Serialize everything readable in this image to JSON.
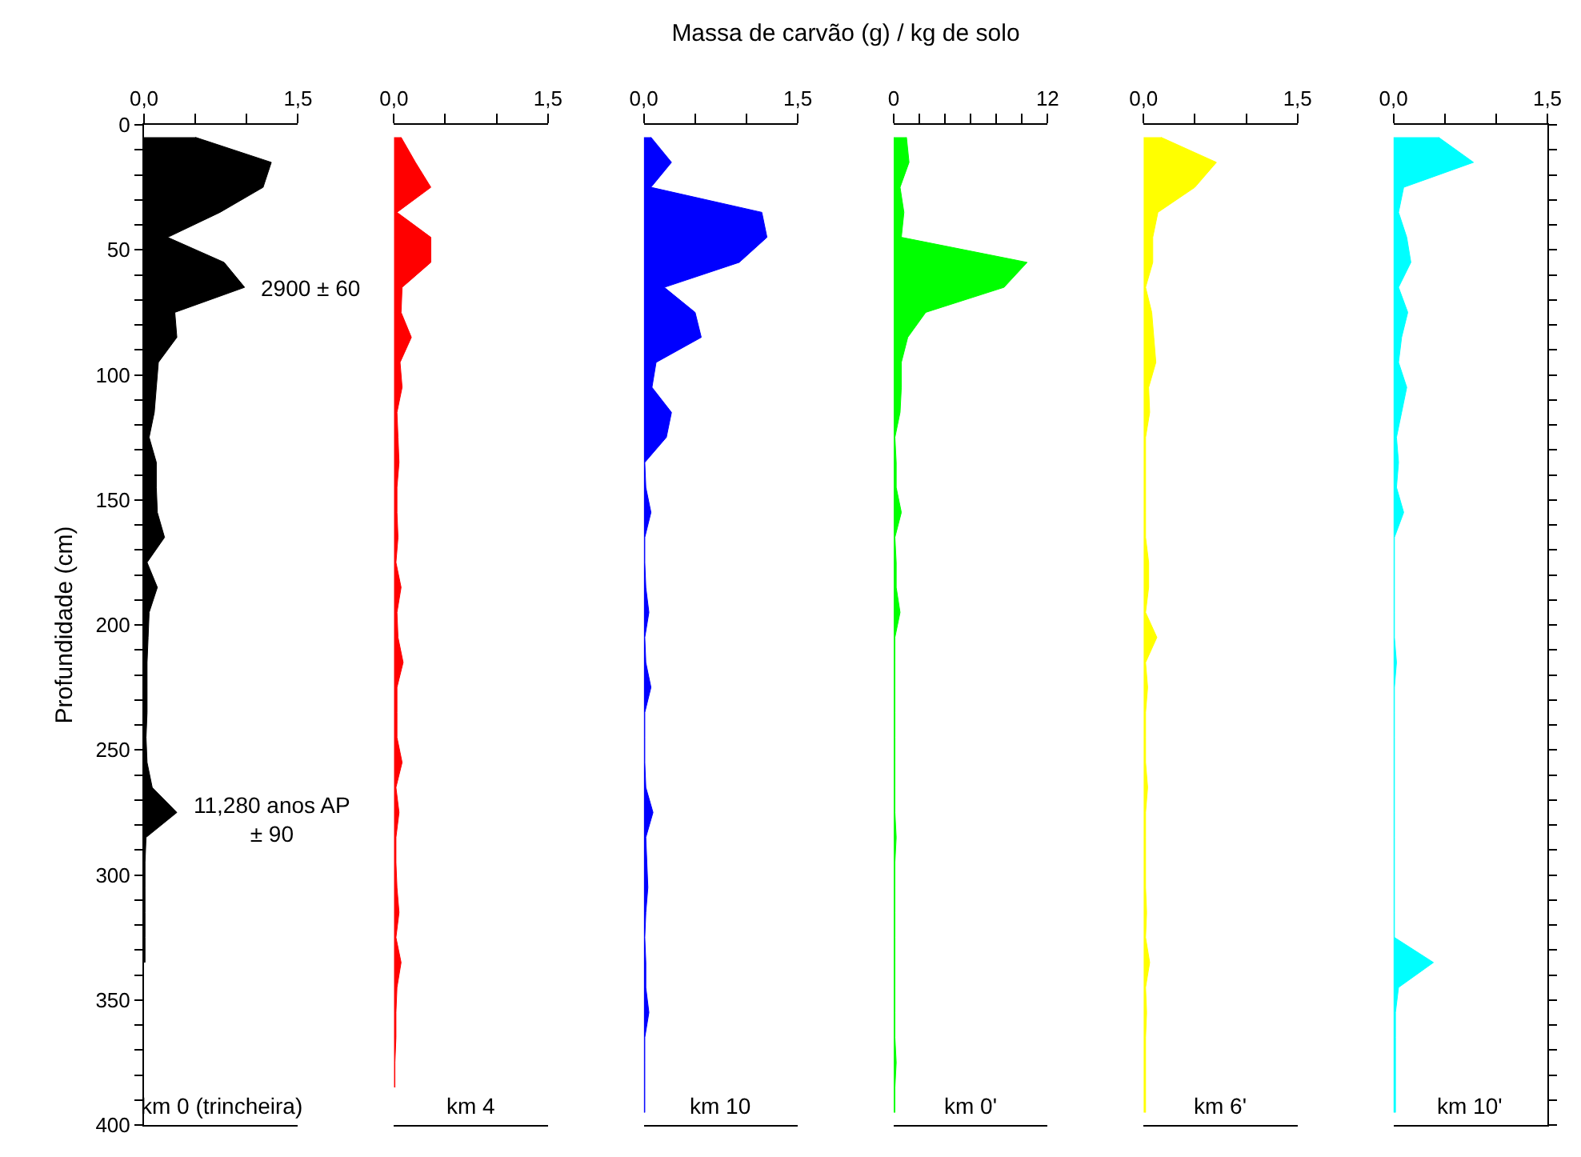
{
  "chart_data": [
    {
      "type": "area",
      "orientation": "horizontal",
      "ylabel": "Profundidade (cm)",
      "xlim": [
        0,
        1.5
      ],
      "xticks": [
        {
          "value": 0,
          "label": "0,0"
        },
        {
          "value": 0.5,
          "label": null
        },
        {
          "value": 1.0,
          "label": null
        },
        {
          "value": 1.5,
          "label": "1,5"
        }
      ],
      "ylim": [
        400,
        0
      ],
      "yticks": [
        0,
        {
          "value": 10,
          "label": null
        },
        {
          "value": 20,
          "label": null
        },
        {
          "value": 30,
          "label": null
        },
        {
          "value": 40,
          "label": null
        },
        50,
        {
          "value": 60,
          "label": null
        },
        {
          "value": 70,
          "label": null
        },
        {
          "value": 80,
          "label": null
        },
        {
          "value": 90,
          "label": null
        },
        100,
        {
          "value": 110,
          "label": null
        },
        {
          "value": 120,
          "label": null
        },
        {
          "value": 130,
          "label": null
        },
        {
          "value": 140,
          "label": null
        },
        150,
        {
          "value": 160,
          "label": null
        },
        {
          "value": 170,
          "label": null
        },
        {
          "value": 180,
          "label": null
        },
        {
          "value": 190,
          "label": null
        },
        200,
        {
          "value": 210,
          "label": null
        },
        {
          "value": 220,
          "label": null
        },
        {
          "value": 230,
          "label": null
        },
        {
          "value": 240,
          "label": null
        },
        250,
        {
          "value": 260,
          "label": null
        },
        {
          "value": 270,
          "label": null
        },
        {
          "value": 280,
          "label": null
        },
        {
          "value": 290,
          "label": null
        },
        300,
        {
          "value": 310,
          "label": null
        },
        {
          "value": 320,
          "label": null
        },
        {
          "value": 330,
          "label": null
        },
        {
          "value": 340,
          "label": null
        },
        350,
        {
          "value": 360,
          "label": null
        },
        {
          "value": 370,
          "label": null
        },
        {
          "value": 380,
          "label": null
        },
        {
          "value": 390,
          "label": null
        },
        400
      ],
      "annotations": [
        {
          "text": "2900 ± 60",
          "x": 0.98,
          "y": 65
        },
        {
          "text": "11,280 anos AP\n± 90",
          "x": 0.32,
          "y": 278
        }
      ],
      "x": [
        5,
        15,
        25,
        35,
        45,
        55,
        65,
        75,
        85,
        95,
        105,
        115,
        125,
        135,
        145,
        155,
        165,
        175,
        185,
        195,
        205,
        215,
        225,
        235,
        245,
        255,
        265,
        275,
        285,
        295,
        305,
        315,
        325,
        335
      ],
      "series": [
        {
          "name": "km 0 (trincheira)",
          "color": "#000000",
          "values": [
            0.5,
            1.24,
            1.16,
            0.74,
            0.23,
            0.78,
            0.98,
            0.3,
            0.32,
            0.14,
            0.12,
            0.1,
            0.05,
            0.12,
            0.12,
            0.13,
            0.2,
            0.03,
            0.13,
            0.05,
            0.04,
            0.03,
            0.03,
            0.03,
            0.02,
            0.03,
            0.08,
            0.32,
            0.02,
            0.01,
            0.01,
            0.01,
            0.01,
            0.01
          ]
        }
      ]
    },
    {
      "type": "area",
      "orientation": "horizontal",
      "tick_labels": "x",
      "xlim": [
        0,
        1.5
      ],
      "xticks": [
        {
          "value": 0,
          "label": "0,0"
        },
        {
          "value": 0.5,
          "label": null
        },
        {
          "value": 1.0,
          "label": null
        },
        {
          "value": 1.5,
          "label": "1,5"
        }
      ],
      "ylim": [
        400,
        0
      ],
      "x": [
        5,
        15,
        25,
        35,
        45,
        55,
        65,
        75,
        85,
        95,
        105,
        115,
        125,
        135,
        145,
        155,
        165,
        175,
        185,
        195,
        205,
        215,
        225,
        235,
        245,
        255,
        265,
        275,
        285,
        295,
        305,
        315,
        325,
        335,
        345,
        355,
        365,
        375,
        385
      ],
      "series": [
        {
          "name": "km 4",
          "color": "#ff0000",
          "values": [
            0.07,
            0.21,
            0.36,
            0.03,
            0.36,
            0.36,
            0.08,
            0.07,
            0.17,
            0.06,
            0.08,
            0.03,
            0.04,
            0.05,
            0.03,
            0.03,
            0.04,
            0.02,
            0.07,
            0.03,
            0.04,
            0.09,
            0.03,
            0.03,
            0.03,
            0.08,
            0.02,
            0.05,
            0.02,
            0.02,
            0.03,
            0.05,
            0.02,
            0.07,
            0.03,
            0.02,
            0.02,
            0.01,
            0.01
          ]
        }
      ]
    },
    {
      "type": "area",
      "orientation": "horizontal",
      "title": "Massa de carvão (g) / kg de solo",
      "tick_labels": "x",
      "xlim": [
        0,
        1.5
      ],
      "xticks": [
        {
          "value": 0,
          "label": "0,0"
        },
        {
          "value": 0.5,
          "label": null
        },
        {
          "value": 1.0,
          "label": null
        },
        {
          "value": 1.5,
          "label": "1,5"
        }
      ],
      "ylim": [
        400,
        0
      ],
      "x": [
        5,
        15,
        25,
        35,
        45,
        55,
        65,
        75,
        85,
        95,
        105,
        115,
        125,
        135,
        145,
        155,
        165,
        175,
        185,
        195,
        205,
        215,
        225,
        235,
        245,
        255,
        265,
        275,
        285,
        295,
        305,
        315,
        325,
        335,
        345,
        355,
        365,
        375,
        385,
        395
      ],
      "series": [
        {
          "name": "km 10",
          "color": "#0000ff",
          "values": [
            0.07,
            0.27,
            0.07,
            1.15,
            1.2,
            0.93,
            0.2,
            0.5,
            0.56,
            0.12,
            0.08,
            0.27,
            0.22,
            0.01,
            0.02,
            0.07,
            0.01,
            0.01,
            0.02,
            0.05,
            0.01,
            0.02,
            0.07,
            0.01,
            0.01,
            0.01,
            0.02,
            0.09,
            0.02,
            0.03,
            0.04,
            0.02,
            0.01,
            0.02,
            0.02,
            0.05,
            0.01,
            0.01,
            0.01,
            0.01
          ]
        }
      ]
    },
    {
      "type": "area",
      "orientation": "horizontal",
      "tick_labels": "x",
      "xlim": [
        0,
        12
      ],
      "xticks": [
        0,
        {
          "value": 2,
          "label": null
        },
        {
          "value": 4,
          "label": null
        },
        {
          "value": 6,
          "label": null
        },
        {
          "value": 8,
          "label": null
        },
        {
          "value": 10,
          "label": null
        },
        12
      ],
      "ylim": [
        400,
        0
      ],
      "x": [
        5,
        15,
        25,
        35,
        45,
        55,
        65,
        75,
        85,
        95,
        105,
        115,
        125,
        135,
        145,
        155,
        165,
        175,
        185,
        195,
        205,
        215,
        225,
        235,
        245,
        255,
        265,
        275,
        285,
        295,
        305,
        315,
        325,
        335,
        345,
        355,
        365,
        375,
        385,
        395
      ],
      "series": [
        {
          "name": "km 0'",
          "color": "#00ff00",
          "values": [
            1.0,
            1.2,
            0.5,
            0.8,
            0.6,
            10.4,
            8.6,
            2.5,
            1.1,
            0.6,
            0.6,
            0.5,
            0.1,
            0.2,
            0.2,
            0.6,
            0.1,
            0.2,
            0.2,
            0.5,
            0.1,
            0.1,
            0.1,
            0.1,
            0.1,
            0.1,
            0.1,
            0.1,
            0.2,
            0.1,
            0.1,
            0.1,
            0.1,
            0.1,
            0.1,
            0.1,
            0.1,
            0.2,
            0.1,
            0.1
          ]
        }
      ]
    },
    {
      "type": "area",
      "orientation": "horizontal",
      "tick_labels": "x",
      "xlim": [
        0,
        1.5
      ],
      "xticks": [
        {
          "value": 0,
          "label": "0,0"
        },
        {
          "value": 0.5,
          "label": null
        },
        {
          "value": 1.0,
          "label": null
        },
        {
          "value": 1.5,
          "label": "1,5"
        }
      ],
      "ylim": [
        400,
        0
      ],
      "x": [
        5,
        15,
        25,
        35,
        45,
        55,
        65,
        75,
        85,
        95,
        105,
        115,
        125,
        135,
        145,
        155,
        165,
        175,
        185,
        195,
        205,
        215,
        225,
        235,
        245,
        255,
        265,
        275,
        285,
        295,
        305,
        315,
        325,
        335,
        345,
        355,
        365,
        375,
        385,
        395
      ],
      "series": [
        {
          "name": "km 6'",
          "color": "#ffff00",
          "values": [
            0.17,
            0.71,
            0.5,
            0.14,
            0.09,
            0.09,
            0.02,
            0.08,
            0.1,
            0.12,
            0.05,
            0.06,
            0.02,
            0.02,
            0.02,
            0.02,
            0.02,
            0.05,
            0.05,
            0.02,
            0.13,
            0.02,
            0.04,
            0.02,
            0.02,
            0.02,
            0.04,
            0.02,
            0.02,
            0.02,
            0.02,
            0.03,
            0.02,
            0.06,
            0.02,
            0.03,
            0.02,
            0.02,
            0.02,
            0.02
          ]
        }
      ]
    },
    {
      "type": "area",
      "orientation": "horizontal",
      "tick_labels": "x",
      "xlim": [
        0,
        1.5
      ],
      "xticks": [
        {
          "value": 0,
          "label": "0,0"
        },
        {
          "value": 0.5,
          "label": null
        },
        {
          "value": 1.0,
          "label": null
        },
        {
          "value": 1.5,
          "label": "1,5"
        }
      ],
      "ylim": [
        400,
        0
      ],
      "yticks": [
        {
          "value": 0,
          "label": null
        },
        {
          "value": 10,
          "label": null
        },
        {
          "value": 20,
          "label": null
        },
        {
          "value": 30,
          "label": null
        },
        {
          "value": 40,
          "label": null
        },
        {
          "value": 50,
          "label": null
        },
        {
          "value": 60,
          "label": null
        },
        {
          "value": 70,
          "label": null
        },
        {
          "value": 80,
          "label": null
        },
        {
          "value": 90,
          "label": null
        },
        {
          "value": 100,
          "label": null
        },
        {
          "value": 110,
          "label": null
        },
        {
          "value": 120,
          "label": null
        },
        {
          "value": 130,
          "label": null
        },
        {
          "value": 140,
          "label": null
        },
        {
          "value": 150,
          "label": null
        },
        {
          "value": 160,
          "label": null
        },
        {
          "value": 170,
          "label": null
        },
        {
          "value": 180,
          "label": null
        },
        {
          "value": 190,
          "label": null
        },
        {
          "value": 200,
          "label": null
        },
        {
          "value": 210,
          "label": null
        },
        {
          "value": 220,
          "label": null
        },
        {
          "value": 230,
          "label": null
        },
        {
          "value": 240,
          "label": null
        },
        {
          "value": 250,
          "label": null
        },
        {
          "value": 260,
          "label": null
        },
        {
          "value": 270,
          "label": null
        },
        {
          "value": 280,
          "label": null
        },
        {
          "value": 290,
          "label": null
        },
        {
          "value": 300,
          "label": null
        },
        {
          "value": 310,
          "label": null
        },
        {
          "value": 320,
          "label": null
        },
        {
          "value": 330,
          "label": null
        },
        {
          "value": 340,
          "label": null
        },
        {
          "value": 350,
          "label": null
        },
        {
          "value": 360,
          "label": null
        },
        {
          "value": 370,
          "label": null
        },
        {
          "value": 380,
          "label": null
        },
        {
          "value": 390,
          "label": null
        },
        {
          "value": 400,
          "label": null
        }
      ],
      "x": [
        5,
        15,
        25,
        35,
        45,
        55,
        65,
        75,
        85,
        95,
        105,
        115,
        125,
        135,
        145,
        155,
        165,
        175,
        185,
        195,
        205,
        215,
        225,
        235,
        245,
        255,
        265,
        275,
        285,
        295,
        305,
        315,
        325,
        335,
        345,
        355,
        365,
        375,
        385,
        395
      ],
      "series": [
        {
          "name": "km 10'",
          "color": "#00ffff",
          "values": [
            0.44,
            0.78,
            0.1,
            0.05,
            0.13,
            0.17,
            0.05,
            0.14,
            0.08,
            0.05,
            0.13,
            0.08,
            0.03,
            0.05,
            0.03,
            0.1,
            0.01,
            0.01,
            0.01,
            0.01,
            0.01,
            0.03,
            0.01,
            0.01,
            0.01,
            0.01,
            0.01,
            0.01,
            0.01,
            0.01,
            0.01,
            0.01,
            0.01,
            0.39,
            0.05,
            0.02,
            0.02,
            0.02,
            0.02,
            0.02
          ]
        }
      ]
    }
  ]
}
